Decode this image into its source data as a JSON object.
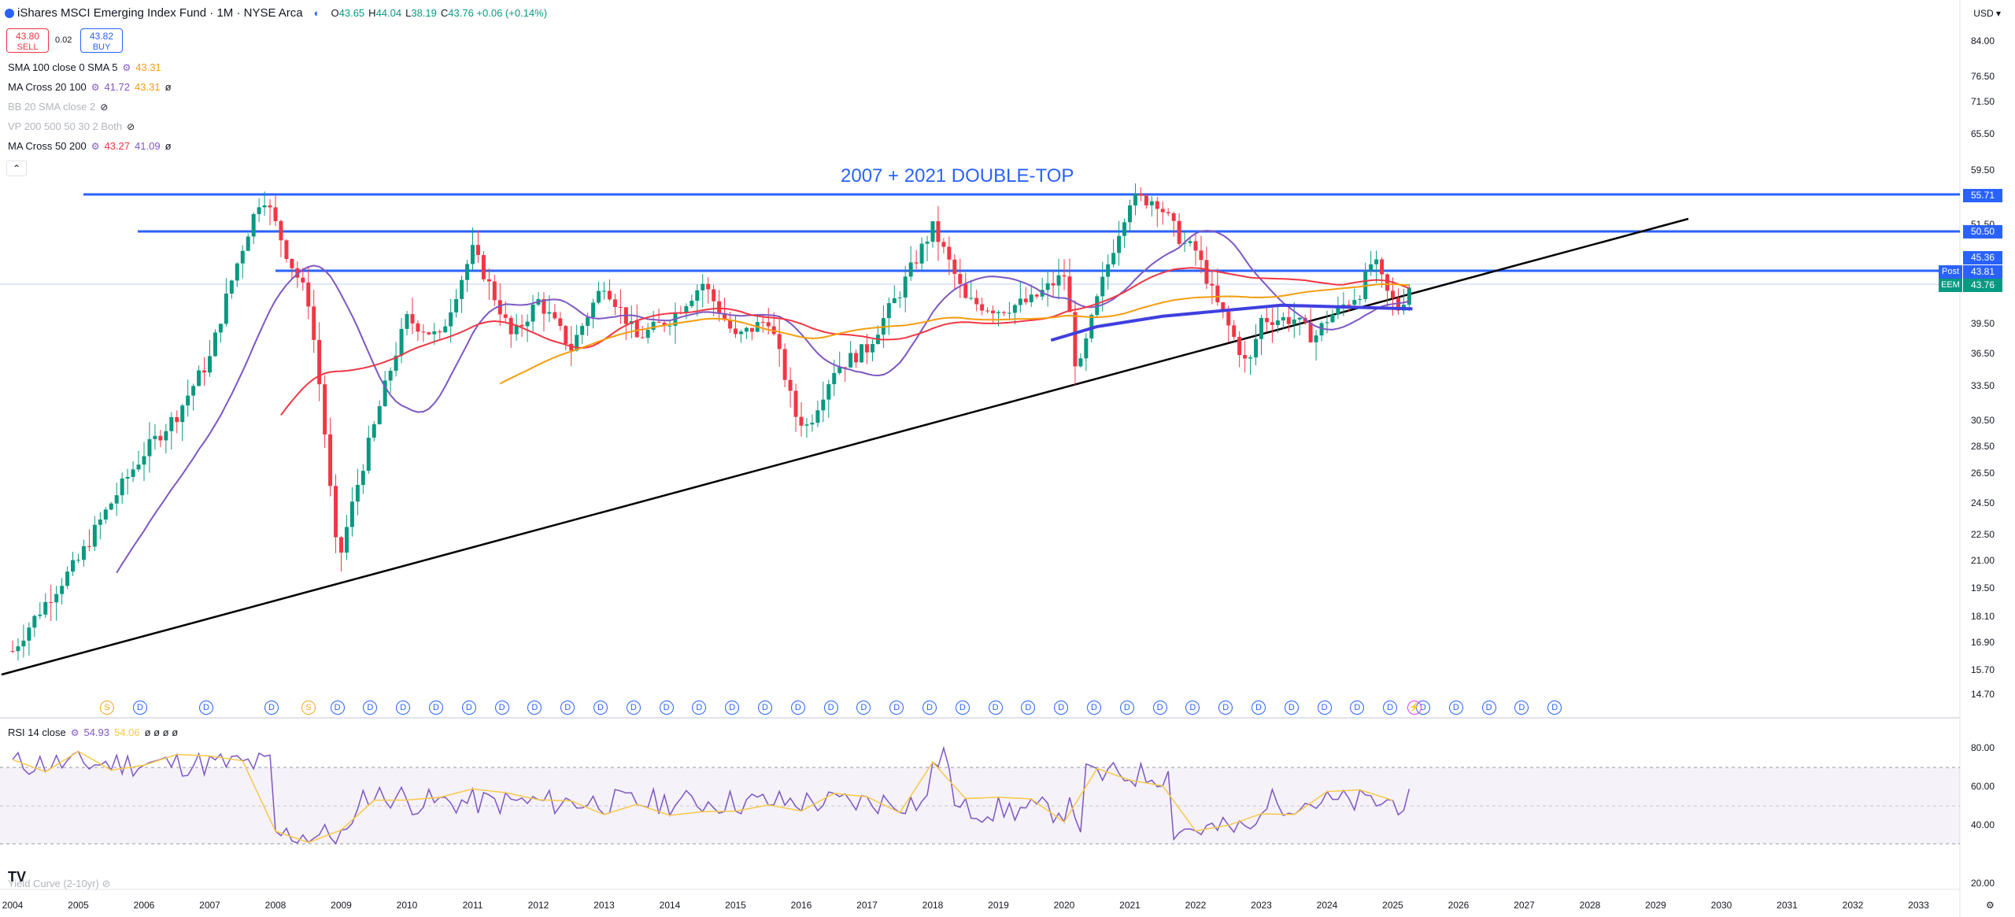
{
  "header": {
    "title": "iShares MSCI Emerging Index Fund · 1M · NYSE Arca",
    "ohlc": [
      {
        "k": "O",
        "v": "43.65"
      },
      {
        "k": "H",
        "v": "44.04"
      },
      {
        "k": "L",
        "v": "38.19"
      },
      {
        "k": "C",
        "v": "43.76 +0.06 (+0.14%)"
      }
    ],
    "sell_price": "43.80",
    "sell_label": "SELL",
    "buy_price": "43.82",
    "buy_label": "BUY",
    "spread": "0.02",
    "currency": "USD"
  },
  "indicators": [
    {
      "name": "SMA 100 close 0 SMA 5",
      "vals": [
        {
          "v": "43.31",
          "c": "#f59d0e"
        }
      ],
      "hidden": false
    },
    {
      "name": "MA Cross 20 100",
      "vals": [
        {
          "v": "41.72",
          "c": "#7e57c2"
        },
        {
          "v": "43.31",
          "c": "#f59d0e"
        },
        {
          "v": "ø",
          "c": "#131722"
        }
      ],
      "hidden": false
    },
    {
      "name": "BB 20 SMA close 2",
      "vals": [],
      "hidden": true
    },
    {
      "name": "VP 200 500 50 30 2 Both",
      "vals": [],
      "hidden": true
    },
    {
      "name": "MA Cross 50 200",
      "vals": [
        {
          "v": "43.27",
          "c": "#f23645"
        },
        {
          "v": "41.09",
          "c": "#7e57c2"
        },
        {
          "v": "ø",
          "c": "#131722"
        }
      ],
      "hidden": false
    }
  ],
  "annotation": "2007 + 2021 DOUBLE-TOP",
  "price_axis": [
    "84.00",
    "76.50",
    "71.50",
    "65.50",
    "59.50",
    "51.50",
    "45.36",
    "39.50",
    "36.50",
    "33.50",
    "30.50",
    "28.50",
    "26.50",
    "24.50",
    "22.50",
    "21.00",
    "19.50",
    "18.10",
    "16.90",
    "15.70",
    "14.70"
  ],
  "price_tags": [
    {
      "label": "55.71",
      "color": "#2962ff"
    },
    {
      "label": "50.50",
      "color": "#2962ff"
    },
    {
      "label": "45.36",
      "color": "#2962ff"
    },
    {
      "label": "43.81",
      "color": "#2962ff",
      "side": "Post",
      "side_color": "#2962ff"
    },
    {
      "label": "43.76",
      "color": "#089981",
      "side": "EEM",
      "side_color": "#089981"
    }
  ],
  "time_axis": [
    "2004",
    "2005",
    "2006",
    "2007",
    "2008",
    "2009",
    "2010",
    "2011",
    "2012",
    "2013",
    "2014",
    "2015",
    "2016",
    "2017",
    "2018",
    "2019",
    "2020",
    "2021",
    "2022",
    "2023",
    "2024",
    "2025",
    "2026",
    "2027",
    "2028",
    "2029",
    "2030",
    "2031",
    "2032",
    "2033"
  ],
  "rsi": {
    "label": "RSI 14 close",
    "value1": "54.93",
    "value2": "54.06",
    "extra": "ø ø ø ø",
    "axis": [
      "80.00",
      "60.00",
      "40.00",
      "20.00"
    ]
  },
  "yield_curve_label": "Yield Curve (2-10yr)",
  "tv_logo": "TV",
  "events": [
    {
      "t": "S",
      "kind": "s"
    },
    {
      "t": "D",
      "kind": "d"
    },
    {
      "t": "D",
      "kind": "d"
    },
    {
      "t": "D",
      "kind": "d"
    },
    {
      "t": "S",
      "kind": "s"
    },
    {
      "t": "D",
      "kind": "d"
    },
    {
      "t": "D",
      "kind": "d"
    },
    {
      "t": "D",
      "kind": "d"
    },
    {
      "t": "D",
      "kind": "d"
    },
    {
      "t": "D",
      "kind": "d"
    },
    {
      "t": "D",
      "kind": "d"
    },
    {
      "t": "D",
      "kind": "d"
    },
    {
      "t": "D",
      "kind": "d"
    },
    {
      "t": "D",
      "kind": "d"
    },
    {
      "t": "D",
      "kind": "d"
    },
    {
      "t": "D",
      "kind": "d"
    },
    {
      "t": "D",
      "kind": "d"
    },
    {
      "t": "D",
      "kind": "d"
    },
    {
      "t": "D",
      "kind": "d"
    },
    {
      "t": "D",
      "kind": "d"
    },
    {
      "t": "D",
      "kind": "d"
    },
    {
      "t": "D",
      "kind": "d"
    },
    {
      "t": "D",
      "kind": "d"
    },
    {
      "t": "D",
      "kind": "d"
    },
    {
      "t": "D",
      "kind": "d"
    },
    {
      "t": "D",
      "kind": "d"
    },
    {
      "t": "D",
      "kind": "d"
    },
    {
      "t": "D",
      "kind": "d"
    },
    {
      "t": "D",
      "kind": "d"
    },
    {
      "t": "D",
      "kind": "d"
    },
    {
      "t": "D",
      "kind": "d"
    },
    {
      "t": "D",
      "kind": "d"
    },
    {
      "t": "D",
      "kind": "d"
    },
    {
      "t": "D",
      "kind": "d"
    },
    {
      "t": "D",
      "kind": "d"
    },
    {
      "t": "D",
      "kind": "d"
    },
    {
      "t": "D",
      "kind": "d"
    },
    {
      "t": "D",
      "kind": "d"
    },
    {
      "t": "D",
      "kind": "d"
    },
    {
      "t": "D",
      "kind": "d"
    },
    {
      "t": "D",
      "kind": "d"
    },
    {
      "t": "D",
      "kind": "d"
    },
    {
      "t": "D",
      "kind": "d"
    },
    {
      "t": "⚡",
      "kind": "l"
    }
  ],
  "colors": {
    "up": "#089981",
    "down": "#f23645",
    "hline": "#2962ff",
    "trend": "#000000",
    "sma100": "#f59d0e",
    "ma20": "#7e57c2",
    "ma50": "#f23645",
    "rsi": "#7e57c2",
    "rsi_ma": "#f7c948"
  },
  "icons": {
    "gear": "settings-icon",
    "eye": "eye-off-icon",
    "collapse": "chevron-up-icon"
  }
}
